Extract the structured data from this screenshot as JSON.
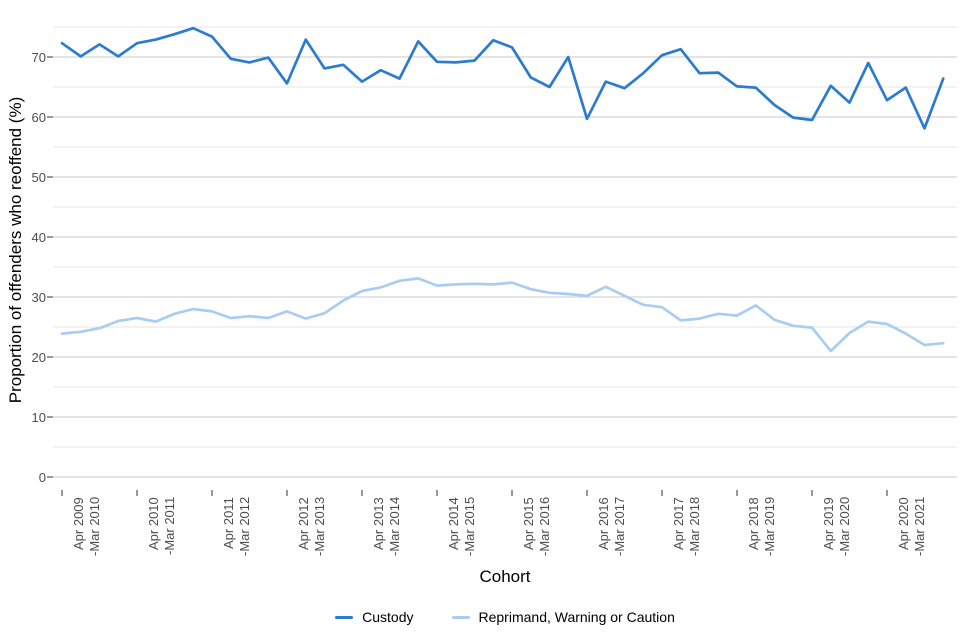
{
  "style": {
    "grid_major": "#c9c9c9",
    "grid_minor": "#e4e4e4",
    "tick_mark": "#333333",
    "axis_text_color": "#4d4d4d",
    "custody_color": "#2b7bce",
    "reprimand_color": "#a9cdf2"
  },
  "legend": {
    "items": [
      {
        "label": "Custody",
        "color": "#2b7bce"
      },
      {
        "label": "Reprimand, Warning or Caution",
        "color": "#a9cdf2"
      }
    ]
  },
  "chart_data": {
    "type": "line",
    "title": "",
    "xlabel": "Cohort",
    "ylabel": "Proportion of offenders who reoffend (%)",
    "ylim": [
      0,
      76
    ],
    "y_ticks": [
      0,
      10,
      20,
      30,
      40,
      50,
      60,
      70
    ],
    "y_gridlines_minor": [
      5,
      15,
      25,
      35,
      45,
      55,
      65,
      75
    ],
    "grid": true,
    "legend_position": "bottom",
    "n_points": 48,
    "x_tick_indices": [
      0,
      4,
      8,
      12,
      16,
      20,
      24,
      28,
      32,
      36,
      40,
      44
    ],
    "x_tick_labels": [
      "Apr 2009\n-Mar 2010",
      "Apr 2010\n-Mar 2011",
      "Apr 2011\n-Mar 2012",
      "Apr 2012\n-Mar 2013",
      "Apr 2013\n-Mar 2014",
      "Apr 2014\n-Mar 2015",
      "Apr 2015\n-Mar 2016",
      "Apr 2016\n-Mar 2017",
      "Apr 2017\n-Mar 2018",
      "Apr 2018\n-Mar 2019",
      "Apr 2019\n-Mar 2020",
      "Apr 2020\n-Mar 2021"
    ],
    "series": [
      {
        "name": "Custody",
        "color": "#2b7bce",
        "values": [
          72.3,
          70.1,
          72.1,
          70.1,
          72.3,
          72.9,
          73.8,
          74.8,
          73.4,
          69.7,
          69.1,
          69.9,
          65.6,
          72.9,
          68.1,
          68.7,
          65.9,
          67.8,
          66.4,
          72.6,
          69.2,
          69.1,
          69.4,
          72.8,
          71.6,
          66.6,
          65.0,
          70.0,
          59.7,
          65.9,
          64.8,
          67.3,
          70.3,
          71.3,
          67.3,
          67.4,
          65.1,
          64.9,
          62.0,
          59.9,
          59.5,
          65.2,
          62.4,
          69.0,
          62.8,
          64.9,
          58.1,
          66.4
        ]
      },
      {
        "name": "Reprimand, Warning or Caution",
        "color": "#a9cdf2",
        "values": [
          23.9,
          24.2,
          24.8,
          26.0,
          26.5,
          25.9,
          27.2,
          28.0,
          27.6,
          26.5,
          26.8,
          26.5,
          27.6,
          26.4,
          27.3,
          29.4,
          31.0,
          31.6,
          32.7,
          33.1,
          31.9,
          32.1,
          32.2,
          32.1,
          32.4,
          31.3,
          30.7,
          30.5,
          30.2,
          31.7,
          30.2,
          28.7,
          28.3,
          26.1,
          26.4,
          27.2,
          26.9,
          28.6,
          26.2,
          25.2,
          24.9,
          21.0,
          24.0,
          25.9,
          25.5,
          23.9,
          22.0,
          22.3
        ]
      }
    ]
  }
}
